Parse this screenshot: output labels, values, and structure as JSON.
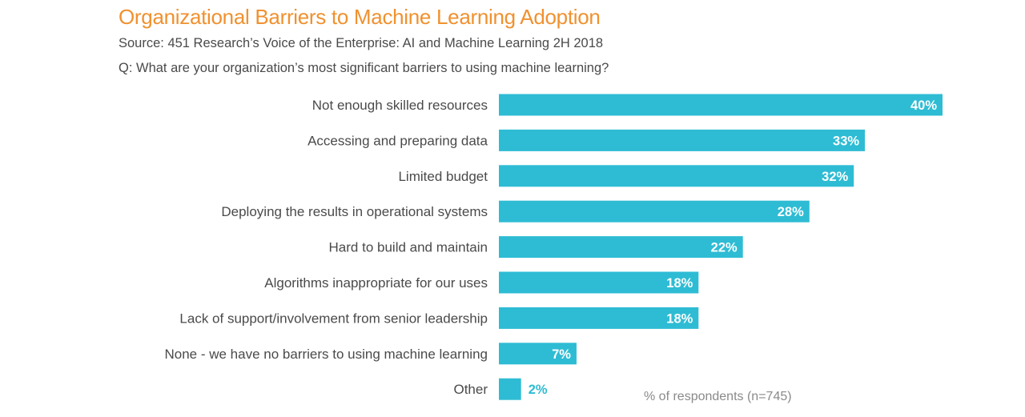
{
  "header": {
    "title": "Organizational Barriers to Machine Learning Adoption",
    "source": "Source: 451 Research’s Voice of the Enterprise: AI and Machine Learning 2H 2018",
    "question": "Q: What are your organization’s most significant barriers to using machine learning?"
  },
  "colors": {
    "title": "#f0912f",
    "bar": "#2ebcd4",
    "label_inside": "#ffffff",
    "label_outside": "#2ebcd4",
    "text": "#4a4a4a"
  },
  "chart_data": {
    "type": "bar",
    "orientation": "horizontal",
    "title": "Organizational Barriers to Machine Learning Adoption",
    "subtitle": "Q: What are your organization’s most significant barriers to using machine learning?",
    "xlabel": "% of respondents (n=745)",
    "ylabel": "",
    "xlim": [
      0,
      40
    ],
    "grid": false,
    "legend": "none",
    "categories": [
      "Not enough skilled resources",
      "Accessing and preparing data",
      "Limited budget",
      "Deploying the results in operational systems",
      "Hard to build and maintain",
      "Algorithms inappropriate for our uses",
      "Lack of support/involvement from senior leadership",
      "None - we have no barriers to using machine learning",
      "Other"
    ],
    "values": [
      40,
      33,
      32,
      28,
      22,
      18,
      18,
      7,
      2
    ],
    "value_labels": [
      "40%",
      "33%",
      "32%",
      "28%",
      "22%",
      "18%",
      "18%",
      "7%",
      "2%"
    ]
  },
  "footnote": "% of respondents (n=745)"
}
